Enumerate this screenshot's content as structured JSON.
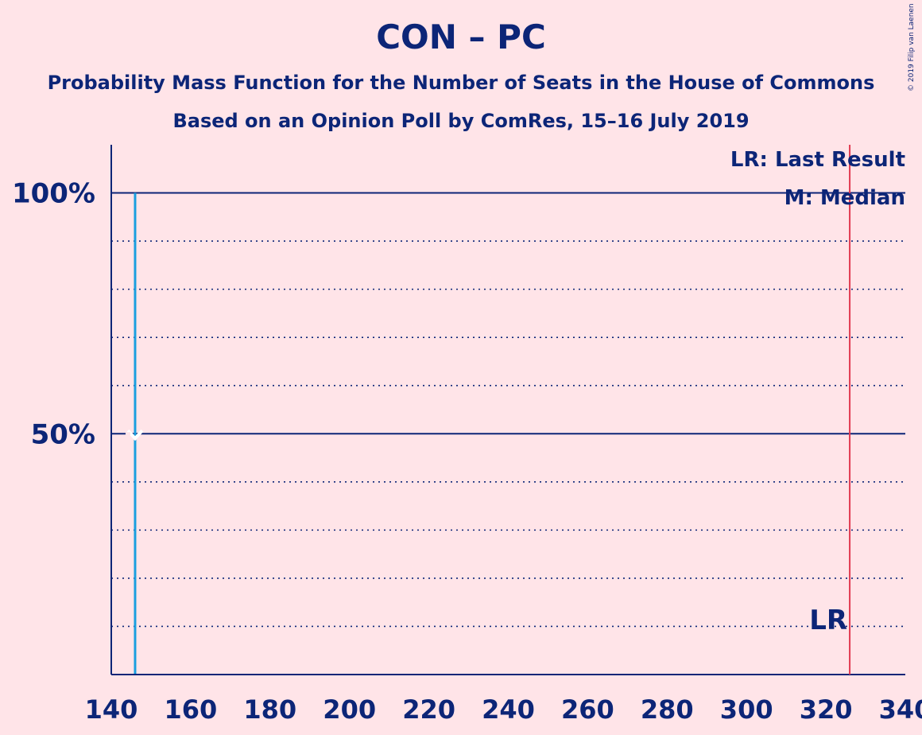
{
  "title": "CON – PC",
  "subtitle_1": "Probability Mass Function for the Number of Seats in the House of Commons",
  "subtitle_2": "Based on an Opinion Poll by ComRes, 15–16 July 2019",
  "copyright": "© 2019 Filip van Laenen",
  "legend": {
    "last_result": "LR: Last Result",
    "median": "M: Median"
  },
  "lr_label": "LR",
  "colors": {
    "background": "#ffe4e8",
    "text": "#0c2577",
    "bar": "#1a9fdf",
    "last_result_line": "#e23a51"
  },
  "chart_data": {
    "type": "bar",
    "x_ticks": [
      140,
      160,
      180,
      200,
      220,
      240,
      260,
      280,
      300,
      320,
      340
    ],
    "y_ticks": [
      {
        "value": 50,
        "label": "50%"
      },
      {
        "value": 100,
        "label": "100%"
      }
    ],
    "xlim": [
      140,
      340
    ],
    "ylim": [
      0,
      110
    ],
    "gridlines_y": [
      10,
      20,
      30,
      40,
      50,
      60,
      70,
      80,
      90,
      100
    ],
    "major_gridlines_y": [
      50,
      100
    ],
    "bars": [
      {
        "seats": 146,
        "probability": 100
      }
    ],
    "median": 146,
    "last_result": 326
  }
}
